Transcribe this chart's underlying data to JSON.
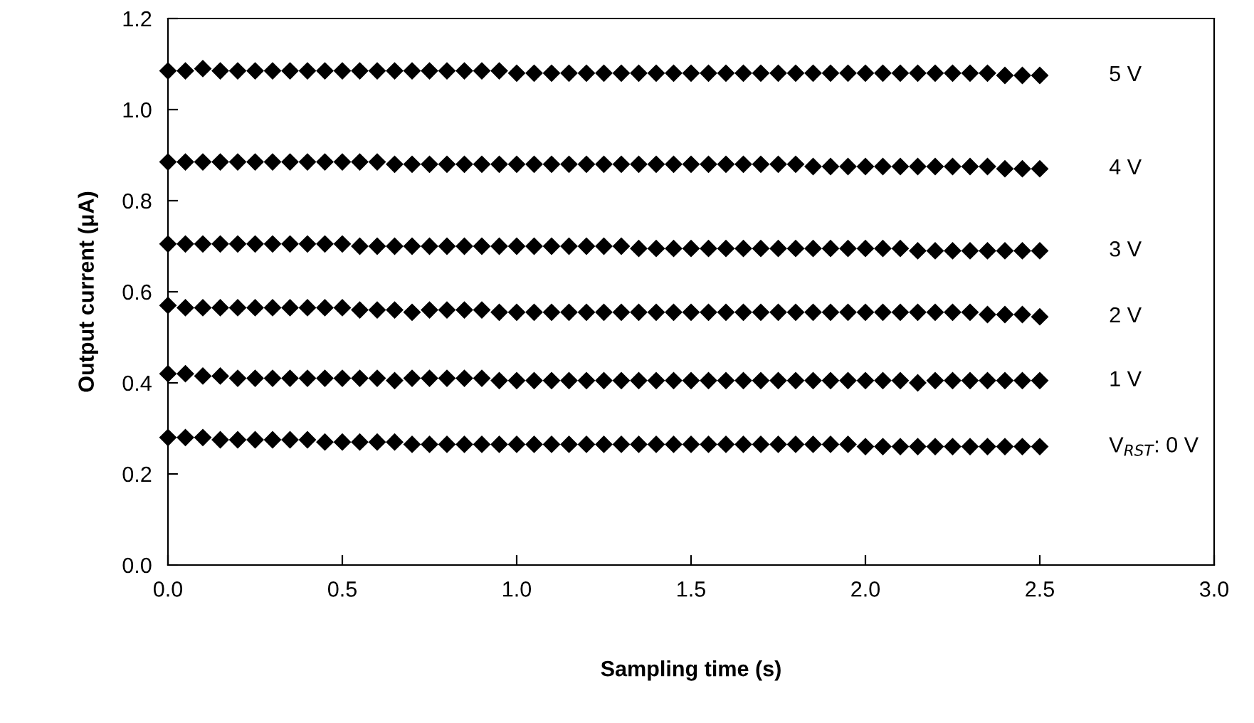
{
  "chart_data": {
    "type": "scatter",
    "xlabel": "Sampling time (s)",
    "ylabel": "Output current (μA)",
    "x": [
      0,
      0.05,
      0.1,
      0.15,
      0.2,
      0.25,
      0.3,
      0.35,
      0.4,
      0.45,
      0.5,
      0.55,
      0.6,
      0.65,
      0.7,
      0.75,
      0.8,
      0.85,
      0.9,
      0.95,
      1.0,
      1.05,
      1.1,
      1.15,
      1.2,
      1.25,
      1.3,
      1.35,
      1.4,
      1.45,
      1.5,
      1.55,
      1.6,
      1.65,
      1.7,
      1.75,
      1.8,
      1.85,
      1.9,
      1.95,
      2.0,
      2.05,
      2.1,
      2.15,
      2.2,
      2.25,
      2.3,
      2.35,
      2.4,
      2.45,
      2.5
    ],
    "marker": "diamond",
    "xlim": [
      0,
      3
    ],
    "ylim": [
      0,
      1.2
    ],
    "xticks": [
      {
        "value": 0,
        "label": "0.0"
      },
      0.5,
      {
        "value": 1,
        "label": "1.0"
      },
      1.5,
      {
        "value": 2,
        "label": "2.0"
      },
      2.5,
      {
        "value": 3,
        "label": "3.0"
      }
    ],
    "yticks": [
      {
        "value": 0,
        "label": "0.0"
      },
      0.2,
      0.4,
      0.6,
      0.8,
      {
        "value": 1,
        "label": "1.0"
      },
      1.2
    ],
    "grid": false,
    "legend": false,
    "series": [
      {
        "name": "5 V",
        "color": "#000000",
        "values": [
          1.085,
          1.085,
          1.09,
          1.085,
          1.085,
          1.085,
          1.085,
          1.085,
          1.085,
          1.085,
          1.085,
          1.085,
          1.085,
          1.085,
          1.085,
          1.085,
          1.085,
          1.085,
          1.085,
          1.085,
          1.08,
          1.08,
          1.08,
          1.08,
          1.08,
          1.08,
          1.08,
          1.08,
          1.08,
          1.08,
          1.08,
          1.08,
          1.08,
          1.08,
          1.08,
          1.08,
          1.08,
          1.08,
          1.08,
          1.08,
          1.08,
          1.08,
          1.08,
          1.08,
          1.08,
          1.08,
          1.08,
          1.08,
          1.075,
          1.075,
          1.075
        ]
      },
      {
        "name": "4 V",
        "color": "#000000",
        "values": [
          0.885,
          0.885,
          0.885,
          0.885,
          0.885,
          0.885,
          0.885,
          0.885,
          0.885,
          0.885,
          0.885,
          0.885,
          0.885,
          0.88,
          0.88,
          0.88,
          0.88,
          0.88,
          0.88,
          0.88,
          0.88,
          0.88,
          0.88,
          0.88,
          0.88,
          0.88,
          0.88,
          0.88,
          0.88,
          0.88,
          0.88,
          0.88,
          0.88,
          0.88,
          0.88,
          0.88,
          0.88,
          0.875,
          0.875,
          0.875,
          0.875,
          0.875,
          0.875,
          0.875,
          0.875,
          0.875,
          0.875,
          0.875,
          0.87,
          0.87,
          0.87
        ]
      },
      {
        "name": "3 V",
        "color": "#000000",
        "values": [
          0.705,
          0.705,
          0.705,
          0.705,
          0.705,
          0.705,
          0.705,
          0.705,
          0.705,
          0.705,
          0.705,
          0.7,
          0.7,
          0.7,
          0.7,
          0.7,
          0.7,
          0.7,
          0.7,
          0.7,
          0.7,
          0.7,
          0.7,
          0.7,
          0.7,
          0.7,
          0.7,
          0.695,
          0.695,
          0.695,
          0.695,
          0.695,
          0.695,
          0.695,
          0.695,
          0.695,
          0.695,
          0.695,
          0.695,
          0.695,
          0.695,
          0.695,
          0.695,
          0.69,
          0.69,
          0.69,
          0.69,
          0.69,
          0.69,
          0.69,
          0.69
        ]
      },
      {
        "name": "2 V",
        "color": "#000000",
        "values": [
          0.57,
          0.565,
          0.565,
          0.565,
          0.565,
          0.565,
          0.565,
          0.565,
          0.565,
          0.565,
          0.565,
          0.56,
          0.56,
          0.56,
          0.555,
          0.56,
          0.56,
          0.56,
          0.56,
          0.555,
          0.555,
          0.555,
          0.555,
          0.555,
          0.555,
          0.555,
          0.555,
          0.555,
          0.555,
          0.555,
          0.555,
          0.555,
          0.555,
          0.555,
          0.555,
          0.555,
          0.555,
          0.555,
          0.555,
          0.555,
          0.555,
          0.555,
          0.555,
          0.555,
          0.555,
          0.555,
          0.555,
          0.55,
          0.55,
          0.55,
          0.545
        ]
      },
      {
        "name": "1 V",
        "color": "#000000",
        "values": [
          0.42,
          0.42,
          0.415,
          0.415,
          0.41,
          0.41,
          0.41,
          0.41,
          0.41,
          0.41,
          0.41,
          0.41,
          0.41,
          0.405,
          0.41,
          0.41,
          0.41,
          0.41,
          0.41,
          0.405,
          0.405,
          0.405,
          0.405,
          0.405,
          0.405,
          0.405,
          0.405,
          0.405,
          0.405,
          0.405,
          0.405,
          0.405,
          0.405,
          0.405,
          0.405,
          0.405,
          0.405,
          0.405,
          0.405,
          0.405,
          0.405,
          0.405,
          0.405,
          0.4,
          0.405,
          0.405,
          0.405,
          0.405,
          0.405,
          0.405,
          0.405
        ]
      },
      {
        "name": "V$_{RST}$: 0 V",
        "color": "#000000",
        "values": [
          0.28,
          0.28,
          0.28,
          0.275,
          0.275,
          0.275,
          0.275,
          0.275,
          0.275,
          0.27,
          0.27,
          0.27,
          0.27,
          0.27,
          0.265,
          0.265,
          0.265,
          0.265,
          0.265,
          0.265,
          0.265,
          0.265,
          0.265,
          0.265,
          0.265,
          0.265,
          0.265,
          0.265,
          0.265,
          0.265,
          0.265,
          0.265,
          0.265,
          0.265,
          0.265,
          0.265,
          0.265,
          0.265,
          0.265,
          0.265,
          0.26,
          0.26,
          0.26,
          0.26,
          0.26,
          0.26,
          0.26,
          0.26,
          0.26,
          0.26,
          0.26
        ]
      }
    ]
  }
}
